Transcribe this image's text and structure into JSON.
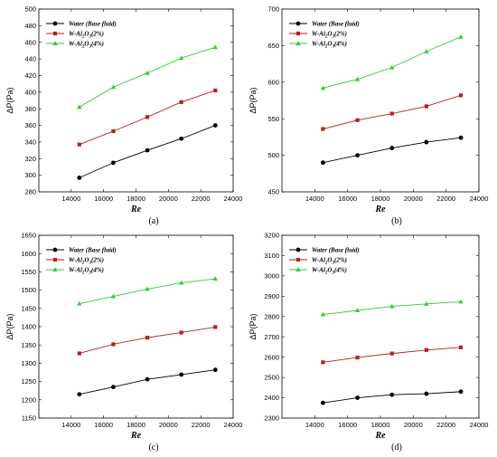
{
  "chart_data": [
    {
      "type": "line",
      "panel_label": "(a)",
      "xlabel": "Re",
      "ylabel": "ΔP(Pa)",
      "xlim": [
        12000,
        24000
      ],
      "xticks": [
        14000,
        16000,
        18000,
        20000,
        22000,
        24000
      ],
      "ylim": [
        280,
        500
      ],
      "yticks": [
        280,
        300,
        320,
        340,
        360,
        380,
        400,
        420,
        440,
        460,
        480,
        500
      ],
      "x": [
        14500,
        16600,
        18700,
        20800,
        22900
      ],
      "legend_position": "top-left",
      "series": [
        {
          "name": "Water (Base fluid)",
          "color": "#000000",
          "marker": "circle",
          "values": [
            297,
            315,
            330,
            344,
            360
          ]
        },
        {
          "name": "W-Al2O3(2%)",
          "color": "#b22222",
          "marker": "square",
          "values": [
            337,
            353,
            370,
            388,
            402
          ]
        },
        {
          "name": "W-Al2O3(4%)",
          "color": "#33cc33",
          "marker": "triangle",
          "values": [
            382,
            406,
            423,
            441,
            454
          ]
        }
      ]
    },
    {
      "type": "line",
      "panel_label": "(b)",
      "xlabel": "Re",
      "ylabel": "ΔP(Pa)",
      "xlim": [
        12000,
        24000
      ],
      "xticks": [
        14000,
        16000,
        18000,
        20000,
        22000,
        24000
      ],
      "ylim": [
        450,
        700
      ],
      "yticks": [
        450,
        500,
        550,
        600,
        650,
        700
      ],
      "x": [
        14500,
        16600,
        18700,
        20800,
        22900
      ],
      "legend_position": "top-left",
      "series": [
        {
          "name": "Water (Base fluid)",
          "color": "#000000",
          "marker": "circle",
          "values": [
            490,
            500,
            510,
            518,
            524
          ]
        },
        {
          "name": "W-Al2O3(2%)",
          "color": "#b22222",
          "marker": "square",
          "values": [
            536,
            548,
            557,
            567,
            582
          ]
        },
        {
          "name": "W-Al2O3(4%)",
          "color": "#33cc33",
          "marker": "triangle",
          "values": [
            592,
            604,
            620,
            642,
            662
          ]
        }
      ]
    },
    {
      "type": "line",
      "panel_label": "(c)",
      "xlabel": "Re",
      "ylabel": "ΔP(Pa)",
      "xlim": [
        12000,
        24000
      ],
      "xticks": [
        14000,
        16000,
        18000,
        20000,
        22000,
        24000
      ],
      "ylim": [
        1150,
        1650
      ],
      "yticks": [
        1150,
        1200,
        1250,
        1300,
        1350,
        1400,
        1450,
        1500,
        1550,
        1600,
        1650
      ],
      "x": [
        14500,
        16600,
        18700,
        20800,
        22900
      ],
      "legend_position": "top-left",
      "series": [
        {
          "name": "Water (Base fluid)",
          "color": "#000000",
          "marker": "circle",
          "values": [
            1215,
            1235,
            1256,
            1269,
            1282
          ]
        },
        {
          "name": "W-Al2O3(2%)",
          "color": "#b22222",
          "marker": "square",
          "values": [
            1327,
            1352,
            1370,
            1384,
            1399
          ]
        },
        {
          "name": "W-Al2O3(4%)",
          "color": "#33cc33",
          "marker": "triangle",
          "values": [
            1463,
            1483,
            1503,
            1520,
            1531
          ]
        }
      ]
    },
    {
      "type": "line",
      "panel_label": "(d)",
      "xlabel": "Re",
      "ylabel": "ΔP(Pa)",
      "xlim": [
        12000,
        24000
      ],
      "xticks": [
        14000,
        16000,
        18000,
        20000,
        22000,
        24000
      ],
      "ylim": [
        2300,
        3200
      ],
      "yticks": [
        2300,
        2400,
        2500,
        2600,
        2700,
        2800,
        2900,
        3000,
        3100,
        3200
      ],
      "x": [
        14500,
        16600,
        18700,
        20800,
        22900
      ],
      "legend_position": "top-left",
      "series": [
        {
          "name": "Water (Base fluid)",
          "color": "#000000",
          "marker": "circle",
          "values": [
            2375,
            2400,
            2415,
            2420,
            2430
          ]
        },
        {
          "name": "W-Al2O3(2%)",
          "color": "#b22222",
          "marker": "square",
          "values": [
            2575,
            2598,
            2618,
            2635,
            2648
          ]
        },
        {
          "name": "W-Al2O3(4%)",
          "color": "#33cc33",
          "marker": "triangle",
          "values": [
            2810,
            2830,
            2850,
            2862,
            2873
          ]
        }
      ]
    }
  ]
}
